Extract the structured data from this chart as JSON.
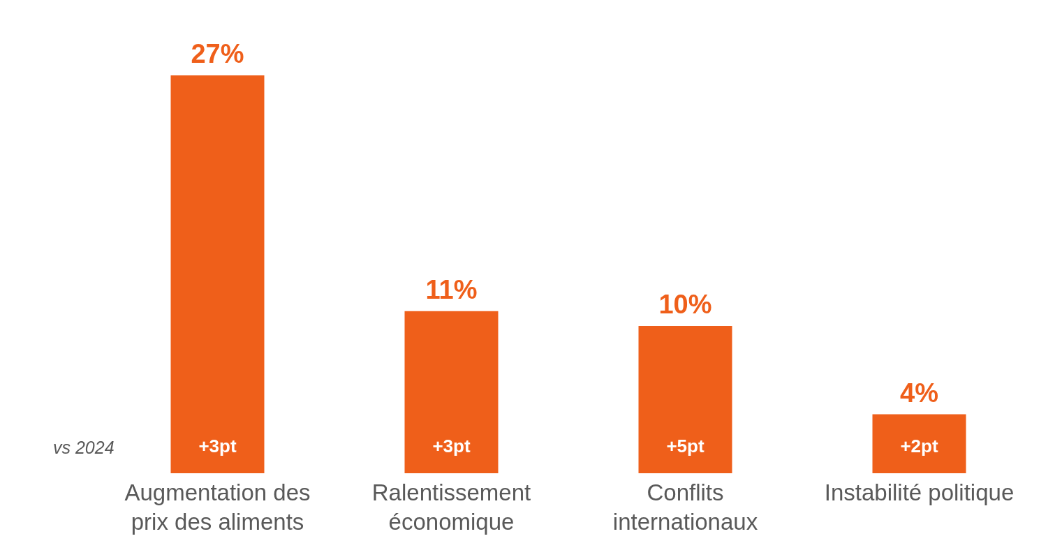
{
  "chart_data": {
    "type": "bar",
    "categories": [
      "Augmentation des prix des aliments",
      "Ralentissement économique",
      "Conflits internationaux",
      "Instabilité politique"
    ],
    "values": [
      27,
      11,
      10,
      4
    ],
    "color": "#ef5f1a",
    "value_labels": [
      "27%",
      "11%",
      "10%",
      "4%"
    ],
    "annotations": [
      "vs 2024",
      "+3pt",
      "+3pt",
      "+5pt",
      "+2pt"
    ],
    "grid": false
  }
}
